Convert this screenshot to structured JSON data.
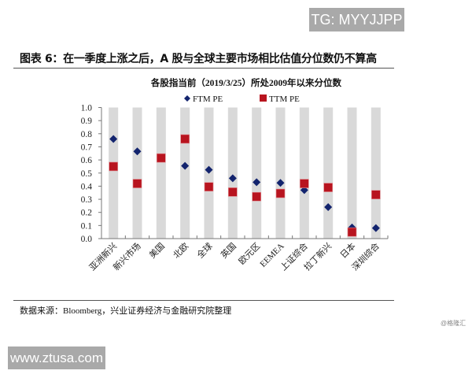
{
  "watermark_top": "TG: MYYJJPP",
  "figure_title": "图表 6：在一季度上涨之后，A 股与全球主要市场相比估值分位数仍不算高",
  "source": "数据来源：Bloomberg，兴业证券经济与金融研究院整理",
  "credit": "@格隆汇",
  "watermark_bottom": "www.ztusa.com",
  "chart_data": {
    "type": "scatter",
    "title": "各股指当前（2019/3/25）所处2009年以来分位数",
    "xlabel": "",
    "ylabel": "",
    "ylim": [
      0,
      1
    ],
    "yticks": [
      "0.0",
      "0.1",
      "0.2",
      "0.3",
      "0.4",
      "0.5",
      "0.6",
      "0.7",
      "0.8",
      "0.9",
      "1.0"
    ],
    "grid": false,
    "legend_position": "top",
    "background_bars": true,
    "categories": [
      "亚洲新兴",
      "新兴市场",
      "美国",
      "北欧",
      "全球",
      "英国",
      "欧元区",
      "EEMEA",
      "上证综合",
      "拉丁新兴",
      "日本",
      "深圳综合"
    ],
    "series": [
      {
        "name": "FTM PE",
        "marker": "diamond",
        "color": "#13246e",
        "values": [
          0.76,
          0.665,
          null,
          0.555,
          0.525,
          0.46,
          0.43,
          0.425,
          0.37,
          0.24,
          0.085,
          0.08
        ]
      },
      {
        "name": "TTM PE",
        "marker": "square",
        "color": "#b8141f",
        "values": [
          0.55,
          0.42,
          0.615,
          0.76,
          0.395,
          0.355,
          0.32,
          0.345,
          0.42,
          0.39,
          0.05,
          0.335
        ]
      }
    ],
    "bar_color": "#d9d9d9"
  }
}
